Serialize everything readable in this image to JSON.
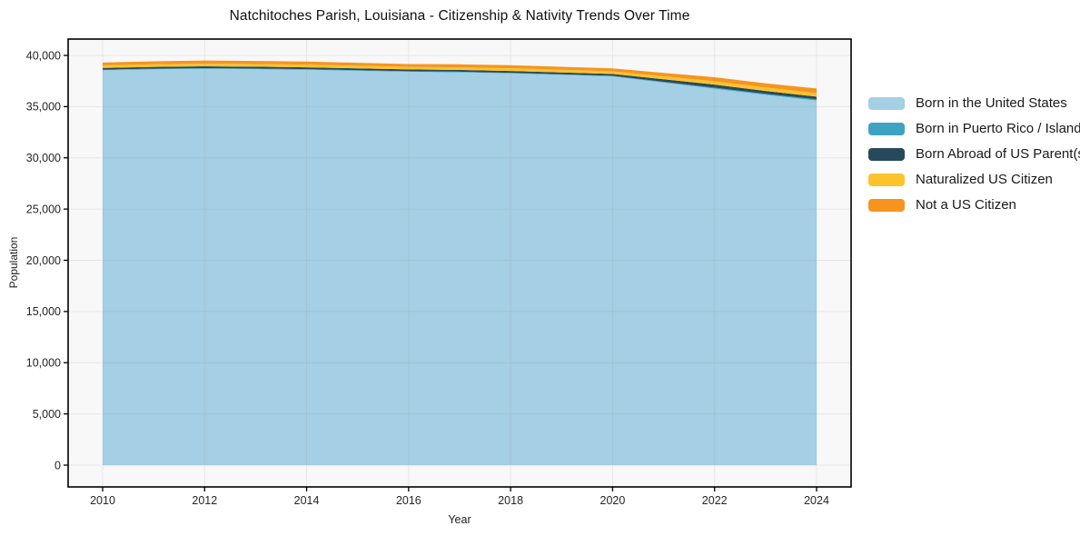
{
  "chart_data": {
    "type": "area",
    "stacked": true,
    "title": "Natchitoches Parish, Louisiana - Citizenship & Nativity Trends Over Time",
    "xlabel": "Year",
    "ylabel": "Population",
    "grid": true,
    "legend_position": "right-outside",
    "plot_background": "#f8f8f8",
    "x": [
      2010,
      2011,
      2012,
      2013,
      2014,
      2015,
      2016,
      2017,
      2018,
      2019,
      2020,
      2021,
      2022,
      2023,
      2024
    ],
    "series": [
      {
        "name": "Born in the United States",
        "color": "#a5cfe4",
        "values": [
          38550,
          38650,
          38700,
          38660,
          38600,
          38500,
          38400,
          38350,
          38250,
          38100,
          37950,
          37350,
          36750,
          36150,
          35600
        ]
      },
      {
        "name": "Born in Puerto Rico / Islands",
        "color": "#3ea3c2",
        "values": [
          60,
          60,
          60,
          60,
          60,
          60,
          60,
          60,
          60,
          60,
          60,
          80,
          100,
          100,
          120
        ]
      },
      {
        "name": "Born Abroad of US Parent(s)",
        "color": "#27495c",
        "values": [
          170,
          170,
          180,
          180,
          180,
          170,
          170,
          170,
          170,
          170,
          180,
          250,
          300,
          280,
          250
        ]
      },
      {
        "name": "Naturalized US Citizen",
        "color": "#fcc32d",
        "values": [
          240,
          250,
          260,
          260,
          260,
          260,
          250,
          260,
          270,
          270,
          260,
          280,
          320,
          330,
          350
        ]
      },
      {
        "name": "Not a US Citizen",
        "color": "#f7941f",
        "values": [
          280,
          290,
          300,
          300,
          300,
          290,
          280,
          290,
          300,
          290,
          280,
          330,
          400,
          420,
          450
        ]
      }
    ],
    "x_ticks": [
      2010,
      2012,
      2014,
      2016,
      2018,
      2020,
      2022,
      2024
    ],
    "x_tick_labels": [
      "2010",
      "2012",
      "2014",
      "2016",
      "2018",
      "2020",
      "2022",
      "2024"
    ],
    "y_ticks": [
      0,
      5000,
      10000,
      15000,
      20000,
      25000,
      30000,
      35000,
      40000
    ],
    "y_tick_labels": [
      "0",
      "5,000",
      "10,000",
      "15,000",
      "20,000",
      "25,000",
      "30,000",
      "35,000",
      "40,000"
    ],
    "ylim": [
      0,
      40000
    ],
    "axis_color": "#000000",
    "tick_label_color": "#262626",
    "gridline_color": "#8c8c8c"
  }
}
